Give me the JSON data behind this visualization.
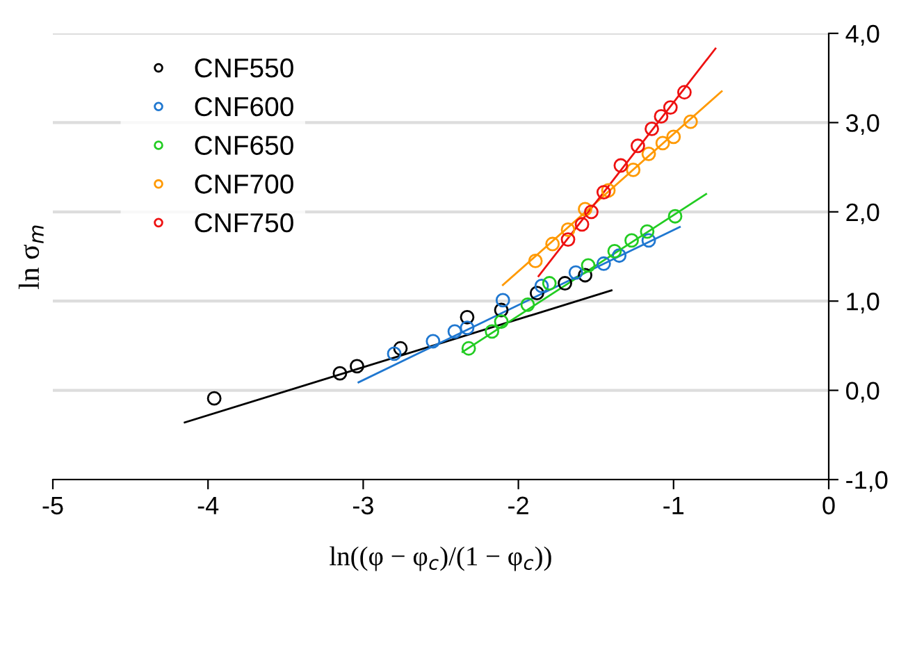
{
  "chart_data": {
    "type": "scatter",
    "xlabel": "ln((φ − φ$_{c}$)/(1 − φ$_{c}$))",
    "ylabel": "ln σ$_{m}$",
    "xlim": [
      -5,
      0
    ],
    "ylim": [
      -1,
      4
    ],
    "xticks": [
      {
        "value": -5,
        "label": "-5"
      },
      {
        "value": -4,
        "label": "-4"
      },
      {
        "value": -3,
        "label": "-3"
      },
      {
        "value": -2,
        "label": "-2"
      },
      {
        "value": -1,
        "label": "-1"
      },
      {
        "value": 0,
        "label": "0"
      }
    ],
    "yticks": [
      {
        "value": -1,
        "label": "-1,0"
      },
      {
        "value": 0,
        "label": "0,0"
      },
      {
        "value": 1,
        "label": "1,0"
      },
      {
        "value": 2,
        "label": "2,0"
      },
      {
        "value": 3,
        "label": "3,0"
      },
      {
        "value": 4,
        "label": "4,0"
      }
    ],
    "grid": "y",
    "legend": "top left",
    "marker": "circle",
    "series": [
      {
        "name": "CNF550",
        "color": "#000000",
        "x": [
          -3.96,
          -3.15,
          -3.04,
          -2.76,
          -2.33,
          -2.11,
          -1.88,
          -1.7,
          -1.57
        ],
        "values": [
          -0.09,
          0.19,
          0.27,
          0.47,
          0.82,
          0.9,
          1.09,
          1.2,
          1.29
        ]
      },
      {
        "name": "CNF600",
        "color": "#1f77d0",
        "x": [
          -2.8,
          -2.55,
          -2.41,
          -2.33,
          -2.1,
          -1.85,
          -1.63,
          -1.45,
          -1.35,
          -1.16
        ],
        "values": [
          0.41,
          0.55,
          0.66,
          0.7,
          1.01,
          1.17,
          1.32,
          1.42,
          1.51,
          1.68
        ]
      },
      {
        "name": "CNF650",
        "color": "#22cc22",
        "x": [
          -2.32,
          -2.17,
          -2.11,
          -1.94,
          -1.8,
          -1.55,
          -1.38,
          -1.27,
          -1.17,
          -0.99
        ],
        "values": [
          0.47,
          0.66,
          0.77,
          0.96,
          1.2,
          1.4,
          1.56,
          1.68,
          1.78,
          1.95
        ]
      },
      {
        "name": "CNF700",
        "color": "#ff9900",
        "x": [
          -1.89,
          -1.78,
          -1.68,
          -1.57,
          -1.42,
          -1.26,
          -1.16,
          -1.07,
          -1.0,
          -0.89
        ],
        "values": [
          1.45,
          1.64,
          1.8,
          2.03,
          2.24,
          2.47,
          2.65,
          2.77,
          2.84,
          3.01
        ]
      },
      {
        "name": "CNF750",
        "color": "#ee1111",
        "x": [
          -1.68,
          -1.59,
          -1.53,
          -1.45,
          -1.34,
          -1.23,
          -1.14,
          -1.08,
          -1.02,
          -0.93
        ],
        "values": [
          1.69,
          1.86,
          2.0,
          2.22,
          2.52,
          2.74,
          2.93,
          3.07,
          3.17,
          3.34
        ]
      },
      {
        "type": "line",
        "marker": "none",
        "color": "#000000",
        "x": [
          -4.15,
          -1.4
        ],
        "values": [
          -0.36,
          1.12
        ]
      },
      {
        "type": "line",
        "marker": "none",
        "color": "#1f77d0",
        "x": [
          -3.03,
          -0.96
        ],
        "values": [
          0.09,
          1.83
        ]
      },
      {
        "type": "line",
        "marker": "none",
        "color": "#22cc22",
        "x": [
          -2.36,
          -0.79
        ],
        "values": [
          0.43,
          2.2
        ]
      },
      {
        "type": "line",
        "marker": "none",
        "color": "#ff9900",
        "x": [
          -2.1,
          -0.69
        ],
        "values": [
          1.18,
          3.35
        ]
      },
      {
        "type": "line",
        "marker": "none",
        "color": "#ee1111",
        "x": [
          -1.87,
          -0.73
        ],
        "values": [
          1.28,
          3.83
        ]
      }
    ]
  }
}
